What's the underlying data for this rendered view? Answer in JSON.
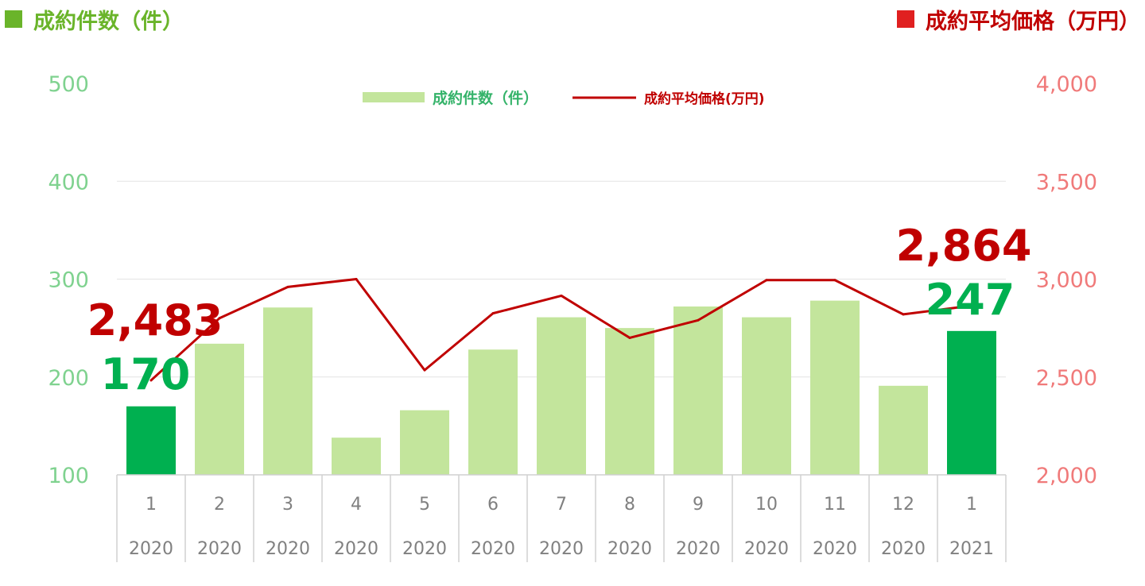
{
  "header": {
    "left_title": "成約件数（件）",
    "right_title": "成約平均価格（万円）"
  },
  "colors": {
    "bar": "#c3e59c",
    "bar_highlight": "#00b050",
    "line": "#c00000"
  },
  "chart_data": {
    "type": "bar+line",
    "categories": [
      "1",
      "2",
      "3",
      "4",
      "5",
      "6",
      "7",
      "8",
      "9",
      "10",
      "11",
      "12",
      "1"
    ],
    "years": [
      "2020",
      "2020",
      "2020",
      "2020",
      "2020",
      "2020",
      "2020",
      "2020",
      "2020",
      "2020",
      "2020",
      "2020",
      "2021"
    ],
    "series": [
      {
        "name": "成約件数（件）",
        "type": "bar",
        "axis": "left",
        "values": [
          170,
          234,
          271,
          138,
          166,
          228,
          261,
          250,
          272,
          261,
          278,
          191,
          247
        ],
        "highlight": [
          0,
          12
        ]
      },
      {
        "name": "成約平均価格(万円)",
        "type": "line",
        "axis": "right",
        "values": [
          2483,
          2800,
          2960,
          3000,
          2535,
          2825,
          2915,
          2700,
          2790,
          2995,
          2995,
          2820,
          2864
        ]
      }
    ],
    "left_axis": {
      "min": 100,
      "max": 500,
      "ticks": [
        "100",
        "200",
        "300",
        "400",
        "500"
      ]
    },
    "right_axis": {
      "min": 2000,
      "max": 4000,
      "ticks": [
        "2,000",
        "2,500",
        "3,000",
        "3,500",
        "4,000"
      ]
    },
    "annotations": {
      "first_price": "2,483",
      "first_count": "170",
      "last_price": "2,864",
      "last_count": "247"
    },
    "grid": true,
    "legend_position": "top-center"
  }
}
